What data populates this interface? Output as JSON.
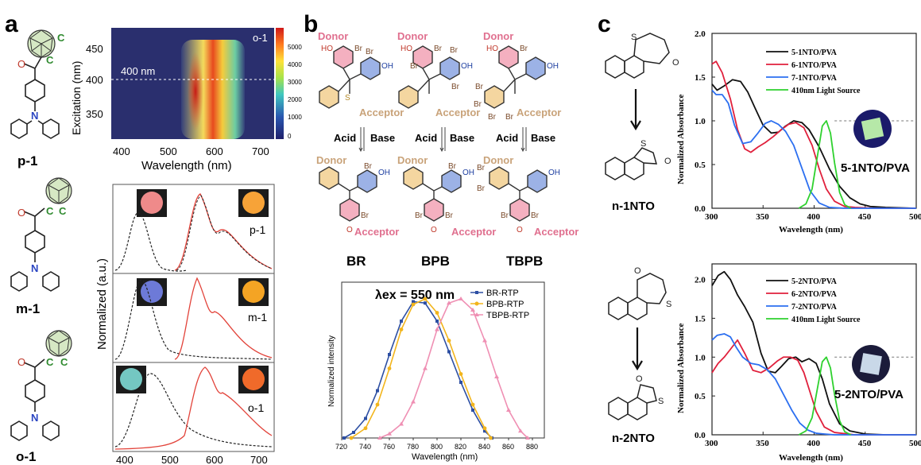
{
  "panels": {
    "a": {
      "letter": "a",
      "molecules": [
        "p-1",
        "m-1",
        "o-1"
      ],
      "carborane_atom": "C",
      "heatmap": {
        "tag": "o-1",
        "line_label": "400 nm",
        "ylabel": "Excitation (nm)",
        "xlabel": "Wavelength (nm)",
        "xticks": [
          "400",
          "500",
          "600",
          "700"
        ],
        "yticks": [
          "450",
          "400",
          "350"
        ],
        "cbar_ticks": [
          "5000",
          "4000",
          "3000",
          "2000",
          "1000",
          "0"
        ]
      },
      "spectra": {
        "ylabel": "Normalized  (a.u.)",
        "labels": [
          "p-1",
          "m-1",
          "o-1"
        ],
        "xticks": [
          "400",
          "500",
          "600",
          "700"
        ]
      }
    },
    "b": {
      "letter": "b",
      "donor": "Donor",
      "acceptor": "Acceptor",
      "acid": "Acid",
      "base": "Base",
      "dyes": [
        "BR",
        "BPB",
        "TBPB"
      ],
      "atoms": {
        "br": "Br",
        "ho": "HO",
        "oh": "OH",
        "o": "O",
        "s": "S"
      },
      "chart": {
        "annotation": "λex = 550 nm",
        "ylabel": "Normalized intensity",
        "xlabel": "Wavelength (nm)",
        "xticks": [
          "720",
          "740",
          "760",
          "780",
          "800",
          "820",
          "840",
          "860",
          "880"
        ],
        "legend": [
          "BR-RTP",
          "BPB-RTP",
          "TBPB-RTP"
        ]
      }
    },
    "c": {
      "letter": "c",
      "molecules": [
        "n-1NTO",
        "n-2NTO"
      ],
      "atoms": {
        "s": "S",
        "o": "O"
      },
      "top": {
        "ylabel": "Normalized Absorbance",
        "xlabel": "Wavelength (nm)",
        "legend": [
          "5-1NTO/PVA",
          "6-1NTO/PVA",
          "7-1NTO/PVA",
          "410nm Light Source"
        ],
        "photo_label": "5-1NTO/PVA",
        "xticks": [
          "300",
          "350",
          "400",
          "450",
          "500"
        ],
        "yticks": [
          "0.0",
          "0.5",
          "1.0",
          "1.5",
          "2.0"
        ]
      },
      "bottom": {
        "ylabel": "Normalized Absorbance",
        "xlabel": "Wavelength (nm)",
        "legend": [
          "5-2NTO/PVA",
          "6-2NTO/PVA",
          "7-2NTO/PVA",
          "410nm Light Source"
        ],
        "photo_label": "5-2NTO/PVA",
        "xticks": [
          "300",
          "350",
          "400",
          "450",
          "500"
        ],
        "yticks": [
          "0.0",
          "0.5",
          "1.0",
          "1.5",
          "2.0"
        ]
      }
    }
  },
  "colors": {
    "donor": "#e0708f",
    "acceptor": "#c9a37a",
    "br_series": "#2d4fa3",
    "bpb_series": "#f2b51c",
    "tbpb_series": "#ef8fb3",
    "black": "#111111",
    "red": "#e0203c",
    "blue": "#2c6ff0",
    "green": "#2ed12e",
    "red_trace": "#e2433a"
  },
  "chart_data": [
    {
      "type": "line",
      "title": "",
      "xlabel": "Wavelength (nm)",
      "ylabel": "Normalized intensity",
      "xlim": [
        720,
        890
      ],
      "ylim": [
        0,
        1.12
      ],
      "series": [
        {
          "name": "BR-RTP",
          "x": [
            722,
            730,
            740,
            750,
            760,
            770,
            780,
            790,
            800,
            810,
            820,
            830,
            840,
            846
          ],
          "y": [
            0,
            0.04,
            0.14,
            0.34,
            0.6,
            0.84,
            0.98,
            0.97,
            0.84,
            0.62,
            0.4,
            0.2,
            0.05,
            0
          ]
        },
        {
          "name": "BPB-RTP",
          "x": [
            728,
            740,
            750,
            760,
            770,
            780,
            790,
            800,
            810,
            820,
            830,
            840,
            845
          ],
          "y": [
            0,
            0.07,
            0.24,
            0.5,
            0.78,
            0.96,
            1.0,
            0.9,
            0.7,
            0.46,
            0.24,
            0.07,
            0
          ]
        },
        {
          "name": "TBPB-RTP",
          "x": [
            752,
            760,
            770,
            780,
            790,
            800,
            810,
            820,
            830,
            840,
            850,
            860,
            870,
            876
          ],
          "y": [
            0,
            0.03,
            0.1,
            0.26,
            0.5,
            0.78,
            0.97,
            1.0,
            0.92,
            0.7,
            0.44,
            0.2,
            0.05,
            0
          ]
        }
      ]
    },
    {
      "type": "line",
      "title": "",
      "xlabel": "Wavelength (nm)",
      "ylabel": "Normalized Absorbance",
      "xlim": [
        300,
        500
      ],
      "ylim": [
        0,
        2.0
      ],
      "series": [
        {
          "name": "5-1NTO/PVA",
          "x": [
            300,
            305,
            312,
            320,
            328,
            335,
            342,
            350,
            358,
            365,
            372,
            380,
            388,
            395,
            405,
            415,
            425,
            435,
            445,
            455,
            470,
            500
          ],
          "y": [
            1.42,
            1.35,
            1.4,
            1.47,
            1.45,
            1.33,
            1.15,
            0.95,
            0.86,
            0.87,
            0.94,
            1.0,
            0.98,
            0.9,
            0.7,
            0.45,
            0.25,
            0.12,
            0.05,
            0.02,
            0.01,
            0
          ]
        },
        {
          "name": "6-1NTO/PVA",
          "x": [
            300,
            304,
            310,
            318,
            325,
            332,
            338,
            345,
            352,
            360,
            368,
            375,
            382,
            390,
            398,
            405,
            412,
            420,
            430,
            440,
            460,
            500
          ],
          "y": [
            1.65,
            1.68,
            1.55,
            1.25,
            0.9,
            0.68,
            0.64,
            0.7,
            0.75,
            0.82,
            0.9,
            0.96,
            0.98,
            0.92,
            0.72,
            0.45,
            0.22,
            0.08,
            0.02,
            0.01,
            0,
            0
          ]
        },
        {
          "name": "7-1NTO/PVA",
          "x": [
            300,
            304,
            310,
            316,
            322,
            330,
            338,
            345,
            352,
            358,
            365,
            372,
            380,
            388,
            396,
            405,
            415,
            430,
            500
          ],
          "y": [
            1.35,
            1.3,
            1.3,
            1.2,
            0.95,
            0.74,
            0.76,
            0.86,
            0.97,
            1.0,
            0.96,
            0.88,
            0.72,
            0.46,
            0.2,
            0.06,
            0.01,
            0,
            0
          ]
        },
        {
          "name": "410nm Light Source",
          "x": [
            385,
            392,
            398,
            403,
            408,
            412,
            416,
            420,
            425,
            430,
            436
          ],
          "y": [
            0,
            0.05,
            0.22,
            0.58,
            0.94,
            1.0,
            0.86,
            0.52,
            0.18,
            0.04,
            0
          ]
        }
      ]
    },
    {
      "type": "line",
      "title": "",
      "xlabel": "Wavelength (nm)",
      "ylabel": "Normalized Absorbance",
      "xlim": [
        300,
        500
      ],
      "ylim": [
        0,
        2.2
      ],
      "series": [
        {
          "name": "5-2NTO/PVA",
          "x": [
            300,
            306,
            312,
            318,
            325,
            332,
            340,
            348,
            355,
            362,
            368,
            375,
            382,
            388,
            395,
            402,
            408,
            415,
            425,
            435,
            450,
            470,
            500
          ],
          "y": [
            1.92,
            2.05,
            2.1,
            2.0,
            1.8,
            1.65,
            1.45,
            1.05,
            0.82,
            0.8,
            0.88,
            0.98,
            1.0,
            0.94,
            0.98,
            0.92,
            0.72,
            0.4,
            0.14,
            0.05,
            0.01,
            0,
            0
          ]
        },
        {
          "name": "6-2NTO/PVA",
          "x": [
            300,
            306,
            312,
            318,
            325,
            332,
            340,
            348,
            356,
            364,
            370,
            377,
            384,
            390,
            396,
            402,
            410,
            420,
            440,
            500
          ],
          "y": [
            0.8,
            0.92,
            1.0,
            1.1,
            1.22,
            1.05,
            0.83,
            0.8,
            0.86,
            0.95,
            1.0,
            1.0,
            0.96,
            0.8,
            0.55,
            0.3,
            0.1,
            0.03,
            0,
            0
          ]
        },
        {
          "name": "7-2NTO/PVA",
          "x": [
            300,
            305,
            312,
            318,
            324,
            330,
            338,
            346,
            354,
            362,
            370,
            378,
            386,
            394,
            402,
            410,
            420,
            440,
            500
          ],
          "y": [
            1.22,
            1.28,
            1.3,
            1.26,
            1.12,
            1.0,
            0.92,
            0.9,
            0.84,
            0.72,
            0.52,
            0.32,
            0.15,
            0.06,
            0.02,
            0.01,
            0,
            0,
            0
          ]
        },
        {
          "name": "410nm Light Source",
          "x": [
            385,
            392,
            398,
            403,
            408,
            412,
            416,
            420,
            425,
            430,
            436
          ],
          "y": [
            0,
            0.05,
            0.22,
            0.58,
            0.94,
            1.0,
            0.86,
            0.52,
            0.18,
            0.04,
            0
          ]
        }
      ]
    }
  ]
}
